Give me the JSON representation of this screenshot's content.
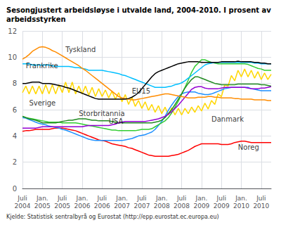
{
  "chart_data": {
    "type": "line",
    "title": "Sesongjustert arbeidsløyse i utvalde land, 2004-2010. I prosent av\narbeidsstyrken",
    "source": "Kjelde: Statistisk sentralbyrå og Eurostat (http://epp.eurostat.ec.europa.eu)",
    "categories": [
      "Juli\n2004",
      null,
      null,
      null,
      null,
      null,
      "Jan.\n2005",
      null,
      null,
      null,
      null,
      null,
      "Juli\n2005",
      null,
      null,
      null,
      null,
      null,
      "Jan.\n2006",
      null,
      null,
      null,
      null,
      null,
      "Juli\n2006",
      null,
      null,
      null,
      null,
      null,
      "Jan.\n2007",
      null,
      null,
      null,
      null,
      null,
      "Juli\n2007",
      null,
      null,
      null,
      null,
      null,
      "Jan.\n2008",
      null,
      null,
      null,
      null,
      null,
      "Juli\n2008",
      null,
      null,
      null,
      null,
      null,
      "Jan.\n2009",
      null,
      null,
      null,
      null,
      null,
      "Juli\n2009",
      null,
      null,
      null,
      null,
      null,
      "Jan.\n2010",
      null,
      null,
      null,
      null,
      null,
      "Juli\n2010",
      null,
      null,
      null
    ],
    "series": [
      {
        "color": "#ffd700",
        "values": [
          7.3,
          7.8,
          7.2,
          7.8,
          7.2,
          7.8,
          7.2,
          7.9,
          7.2,
          7.9,
          7.2,
          7.9,
          7.3,
          8.1,
          7.3,
          8.1,
          7.2,
          7.8,
          7.2,
          7.8,
          7.1,
          7.7,
          7.0,
          7.6,
          7.0,
          7.5,
          6.9,
          7.4,
          6.8,
          7.3,
          6.6,
          7.15,
          6.4,
          6.95,
          6.25,
          6.7,
          6.1,
          6.6,
          5.95,
          6.4,
          5.8,
          6.3,
          5.7,
          6.2,
          5.6,
          6.15,
          5.6,
          6.1,
          5.6,
          6.1,
          5.7,
          6.2,
          5.8,
          6.3,
          5.9,
          6.5,
          6.05,
          6.7,
          6.4,
          7.2,
          7.0,
          7.9,
          7.8,
          8.6,
          8.2,
          9.0,
          8.5,
          9.1,
          8.5,
          9.0,
          8.4,
          8.9,
          8.3,
          8.8,
          8.3,
          8.7
        ]
      },
      {
        "color": "#ff0000",
        "values": [
          4.35,
          4.4,
          4.4,
          4.45,
          4.5,
          4.5,
          4.5,
          4.5,
          4.5,
          4.55,
          4.6,
          4.6,
          4.6,
          4.55,
          4.5,
          4.45,
          4.4,
          4.3,
          4.2,
          4.1,
          4.0,
          3.9,
          3.8,
          3.7,
          3.65,
          3.6,
          3.5,
          3.4,
          3.35,
          3.3,
          3.25,
          3.2,
          3.1,
          3.05,
          2.95,
          2.85,
          2.75,
          2.65,
          2.55,
          2.5,
          2.45,
          2.45,
          2.45,
          2.45,
          2.45,
          2.5,
          2.55,
          2.6,
          2.7,
          2.8,
          2.9,
          3.05,
          3.2,
          3.3,
          3.4,
          3.4,
          3.4,
          3.4,
          3.4,
          3.4,
          3.35,
          3.35,
          3.35,
          3.4,
          3.5,
          3.55,
          3.6,
          3.6,
          3.55,
          3.5,
          3.5,
          3.5,
          3.5,
          3.5,
          3.5,
          3.5
        ]
      },
      {
        "color": "#1e90ff",
        "values": [
          5.4,
          5.35,
          5.25,
          5.15,
          5.05,
          4.95,
          4.9,
          4.85,
          4.75,
          4.7,
          4.65,
          4.6,
          4.5,
          4.45,
          4.35,
          4.25,
          4.15,
          4.05,
          3.95,
          3.85,
          3.75,
          3.7,
          3.65,
          3.65,
          3.65,
          3.65,
          3.65,
          3.65,
          3.65,
          3.65,
          3.65,
          3.7,
          3.75,
          3.8,
          3.9,
          4.0,
          4.05,
          4.1,
          4.2,
          4.3,
          4.5,
          4.8,
          5.1,
          5.5,
          5.95,
          6.35,
          6.7,
          7.0,
          7.2,
          7.3,
          7.35,
          7.35,
          7.35,
          7.25,
          7.2,
          7.15,
          7.15,
          7.2,
          7.3,
          7.4,
          7.5,
          7.6,
          7.65,
          7.7,
          7.7,
          7.7,
          7.7,
          7.7,
          7.7,
          7.6,
          7.55,
          7.5,
          7.45,
          7.45,
          7.45,
          7.45
        ]
      },
      {
        "color": "#32cd32",
        "values": [
          5.5,
          5.4,
          5.35,
          5.3,
          5.25,
          5.2,
          5.15,
          5.1,
          5.05,
          5.05,
          5.05,
          5.05,
          5.0,
          5.0,
          5.0,
          5.0,
          5.0,
          4.95,
          4.9,
          4.85,
          4.8,
          4.75,
          4.7,
          4.65,
          4.6,
          4.55,
          4.5,
          4.45,
          4.45,
          4.4,
          4.4,
          4.4,
          4.4,
          4.4,
          4.4,
          4.45,
          4.5,
          4.5,
          4.5,
          4.55,
          4.7,
          4.85,
          5.0,
          5.15,
          5.4,
          5.75,
          6.2,
          6.65,
          7.2,
          7.7,
          8.25,
          8.85,
          9.3,
          9.55,
          9.8,
          9.8,
          9.7,
          9.6,
          9.55,
          9.5,
          9.5,
          9.5,
          9.5,
          9.5,
          9.5,
          9.5,
          9.5,
          9.5,
          9.45,
          9.35,
          9.25,
          9.15,
          9.1,
          9.0,
          9.0,
          9.0
        ]
      },
      {
        "color": "#228b22",
        "values": [
          5.5,
          5.4,
          5.3,
          5.25,
          5.2,
          5.1,
          5.0,
          5.0,
          5.0,
          5.0,
          5.0,
          5.05,
          5.1,
          5.15,
          5.2,
          5.2,
          5.25,
          5.3,
          5.3,
          5.3,
          5.25,
          5.2,
          5.2,
          5.15,
          5.15,
          5.15,
          5.15,
          5.1,
          5.05,
          5.0,
          5.0,
          5.0,
          5.0,
          5.0,
          5.0,
          5.0,
          5.0,
          5.0,
          5.0,
          5.0,
          5.05,
          5.1,
          5.2,
          5.4,
          5.7,
          6.0,
          6.4,
          6.8,
          7.2,
          7.65,
          8.0,
          8.3,
          8.5,
          8.5,
          8.4,
          8.3,
          8.2,
          8.1,
          8.0,
          7.95,
          7.9,
          7.9,
          7.9,
          7.9,
          7.9,
          7.95,
          7.95,
          7.95,
          7.95,
          7.95,
          7.95,
          7.95,
          7.9,
          7.9,
          7.85,
          7.8
        ]
      },
      {
        "color": "#9400d3",
        "values": [
          4.6,
          4.6,
          4.6,
          4.6,
          4.6,
          4.65,
          4.7,
          4.7,
          4.7,
          4.7,
          4.7,
          4.7,
          4.7,
          4.7,
          4.7,
          4.7,
          4.7,
          4.7,
          4.7,
          4.75,
          4.8,
          4.8,
          4.8,
          4.8,
          4.8,
          4.8,
          4.8,
          4.85,
          4.9,
          5.0,
          5.05,
          5.1,
          5.1,
          5.1,
          5.1,
          5.1,
          5.1,
          5.1,
          5.15,
          5.2,
          5.25,
          5.3,
          5.4,
          5.5,
          5.65,
          5.85,
          6.1,
          6.35,
          6.65,
          6.95,
          7.25,
          7.55,
          7.7,
          7.75,
          7.75,
          7.65,
          7.6,
          7.6,
          7.6,
          7.6,
          7.65,
          7.7,
          7.7,
          7.7,
          7.7,
          7.7,
          7.7,
          7.7,
          7.65,
          7.6,
          7.6,
          7.6,
          7.65,
          7.65,
          7.7,
          7.75
        ]
      },
      {
        "color": "#00bfff",
        "values": [
          9.5,
          9.5,
          9.5,
          9.4,
          9.4,
          9.4,
          9.4,
          9.4,
          9.4,
          9.35,
          9.3,
          9.3,
          9.3,
          9.3,
          9.3,
          9.25,
          9.2,
          9.2,
          9.15,
          9.1,
          9.0,
          9.0,
          9.0,
          9.0,
          9.0,
          8.95,
          8.9,
          8.85,
          8.8,
          8.75,
          8.65,
          8.6,
          8.5,
          8.4,
          8.3,
          8.2,
          8.1,
          8.0,
          7.9,
          7.8,
          7.7,
          7.7,
          7.7,
          7.7,
          7.75,
          7.8,
          7.9,
          7.95,
          8.05,
          8.2,
          8.4,
          8.6,
          8.8,
          9.0,
          9.2,
          9.4,
          9.5,
          9.55,
          9.6,
          9.6,
          9.6,
          9.6,
          9.6,
          9.6,
          9.6,
          9.6,
          9.6,
          9.6,
          9.6,
          9.6,
          9.55,
          9.55,
          9.5,
          9.5,
          9.5,
          9.5
        ]
      },
      {
        "color": "#ff8c00",
        "values": [
          9.85,
          10.0,
          10.2,
          10.45,
          10.6,
          10.75,
          10.8,
          10.75,
          10.65,
          10.5,
          10.4,
          10.25,
          10.1,
          9.95,
          9.8,
          9.65,
          9.5,
          9.35,
          9.15,
          9.0,
          8.8,
          8.6,
          8.4,
          8.2,
          8.0,
          7.8,
          7.6,
          7.4,
          7.2,
          7.0,
          6.9,
          6.85,
          6.8,
          6.75,
          6.75,
          6.8,
          6.85,
          6.9,
          6.95,
          7.0,
          7.05,
          7.1,
          7.15,
          7.2,
          7.2,
          7.15,
          7.1,
          7.05,
          7.0,
          6.95,
          6.9,
          6.9,
          6.9,
          6.95,
          6.95,
          6.95,
          7.0,
          7.0,
          6.95,
          6.95,
          6.9,
          6.9,
          6.9,
          6.9,
          6.85,
          6.85,
          6.8,
          6.8,
          6.8,
          6.8,
          6.75,
          6.75,
          6.75,
          6.75,
          6.7,
          6.7
        ]
      },
      {
        "color": "#000000",
        "values": [
          8.0,
          8.0,
          8.05,
          8.1,
          8.1,
          8.1,
          8.0,
          8.0,
          8.0,
          7.95,
          7.9,
          7.85,
          7.8,
          7.7,
          7.65,
          7.55,
          7.45,
          7.35,
          7.25,
          7.15,
          7.05,
          6.95,
          6.85,
          6.8,
          6.8,
          6.8,
          6.8,
          6.8,
          6.8,
          6.8,
          6.8,
          6.8,
          6.85,
          6.95,
          7.1,
          7.3,
          7.6,
          7.9,
          8.2,
          8.5,
          8.75,
          8.9,
          9.0,
          9.1,
          9.2,
          9.3,
          9.4,
          9.5,
          9.55,
          9.6,
          9.65,
          9.65,
          9.65,
          9.65,
          9.6,
          9.6,
          9.6,
          9.6,
          9.6,
          9.6,
          9.65,
          9.65,
          9.65,
          9.65,
          9.65,
          9.7,
          9.65,
          9.65,
          9.65,
          9.65,
          9.6,
          9.6,
          9.55,
          9.55,
          9.5,
          9.5
        ]
      }
    ],
    "annotations": [
      {
        "text": "EU15",
        "x": 33,
        "y": 7.4
      },
      {
        "text": "Tyskland",
        "x": 13,
        "y": 10.6
      },
      {
        "text": "Frankrike",
        "x": 1,
        "y": 9.35
      },
      {
        "text": "Sverige",
        "x": 2,
        "y": 6.5
      },
      {
        "text": "Storbritannia",
        "x": 17,
        "y": 5.7
      },
      {
        "text": "USA",
        "x": 26,
        "y": 5.1
      },
      {
        "text": "Danmark",
        "x": 57,
        "y": 5.3
      },
      {
        "text": "Noreg",
        "x": 65,
        "y": 3.15
      }
    ],
    "ylim": [
      0,
      12
    ],
    "yticks": [
      0,
      2,
      4,
      6,
      8,
      10,
      12
    ],
    "grid": true
  }
}
